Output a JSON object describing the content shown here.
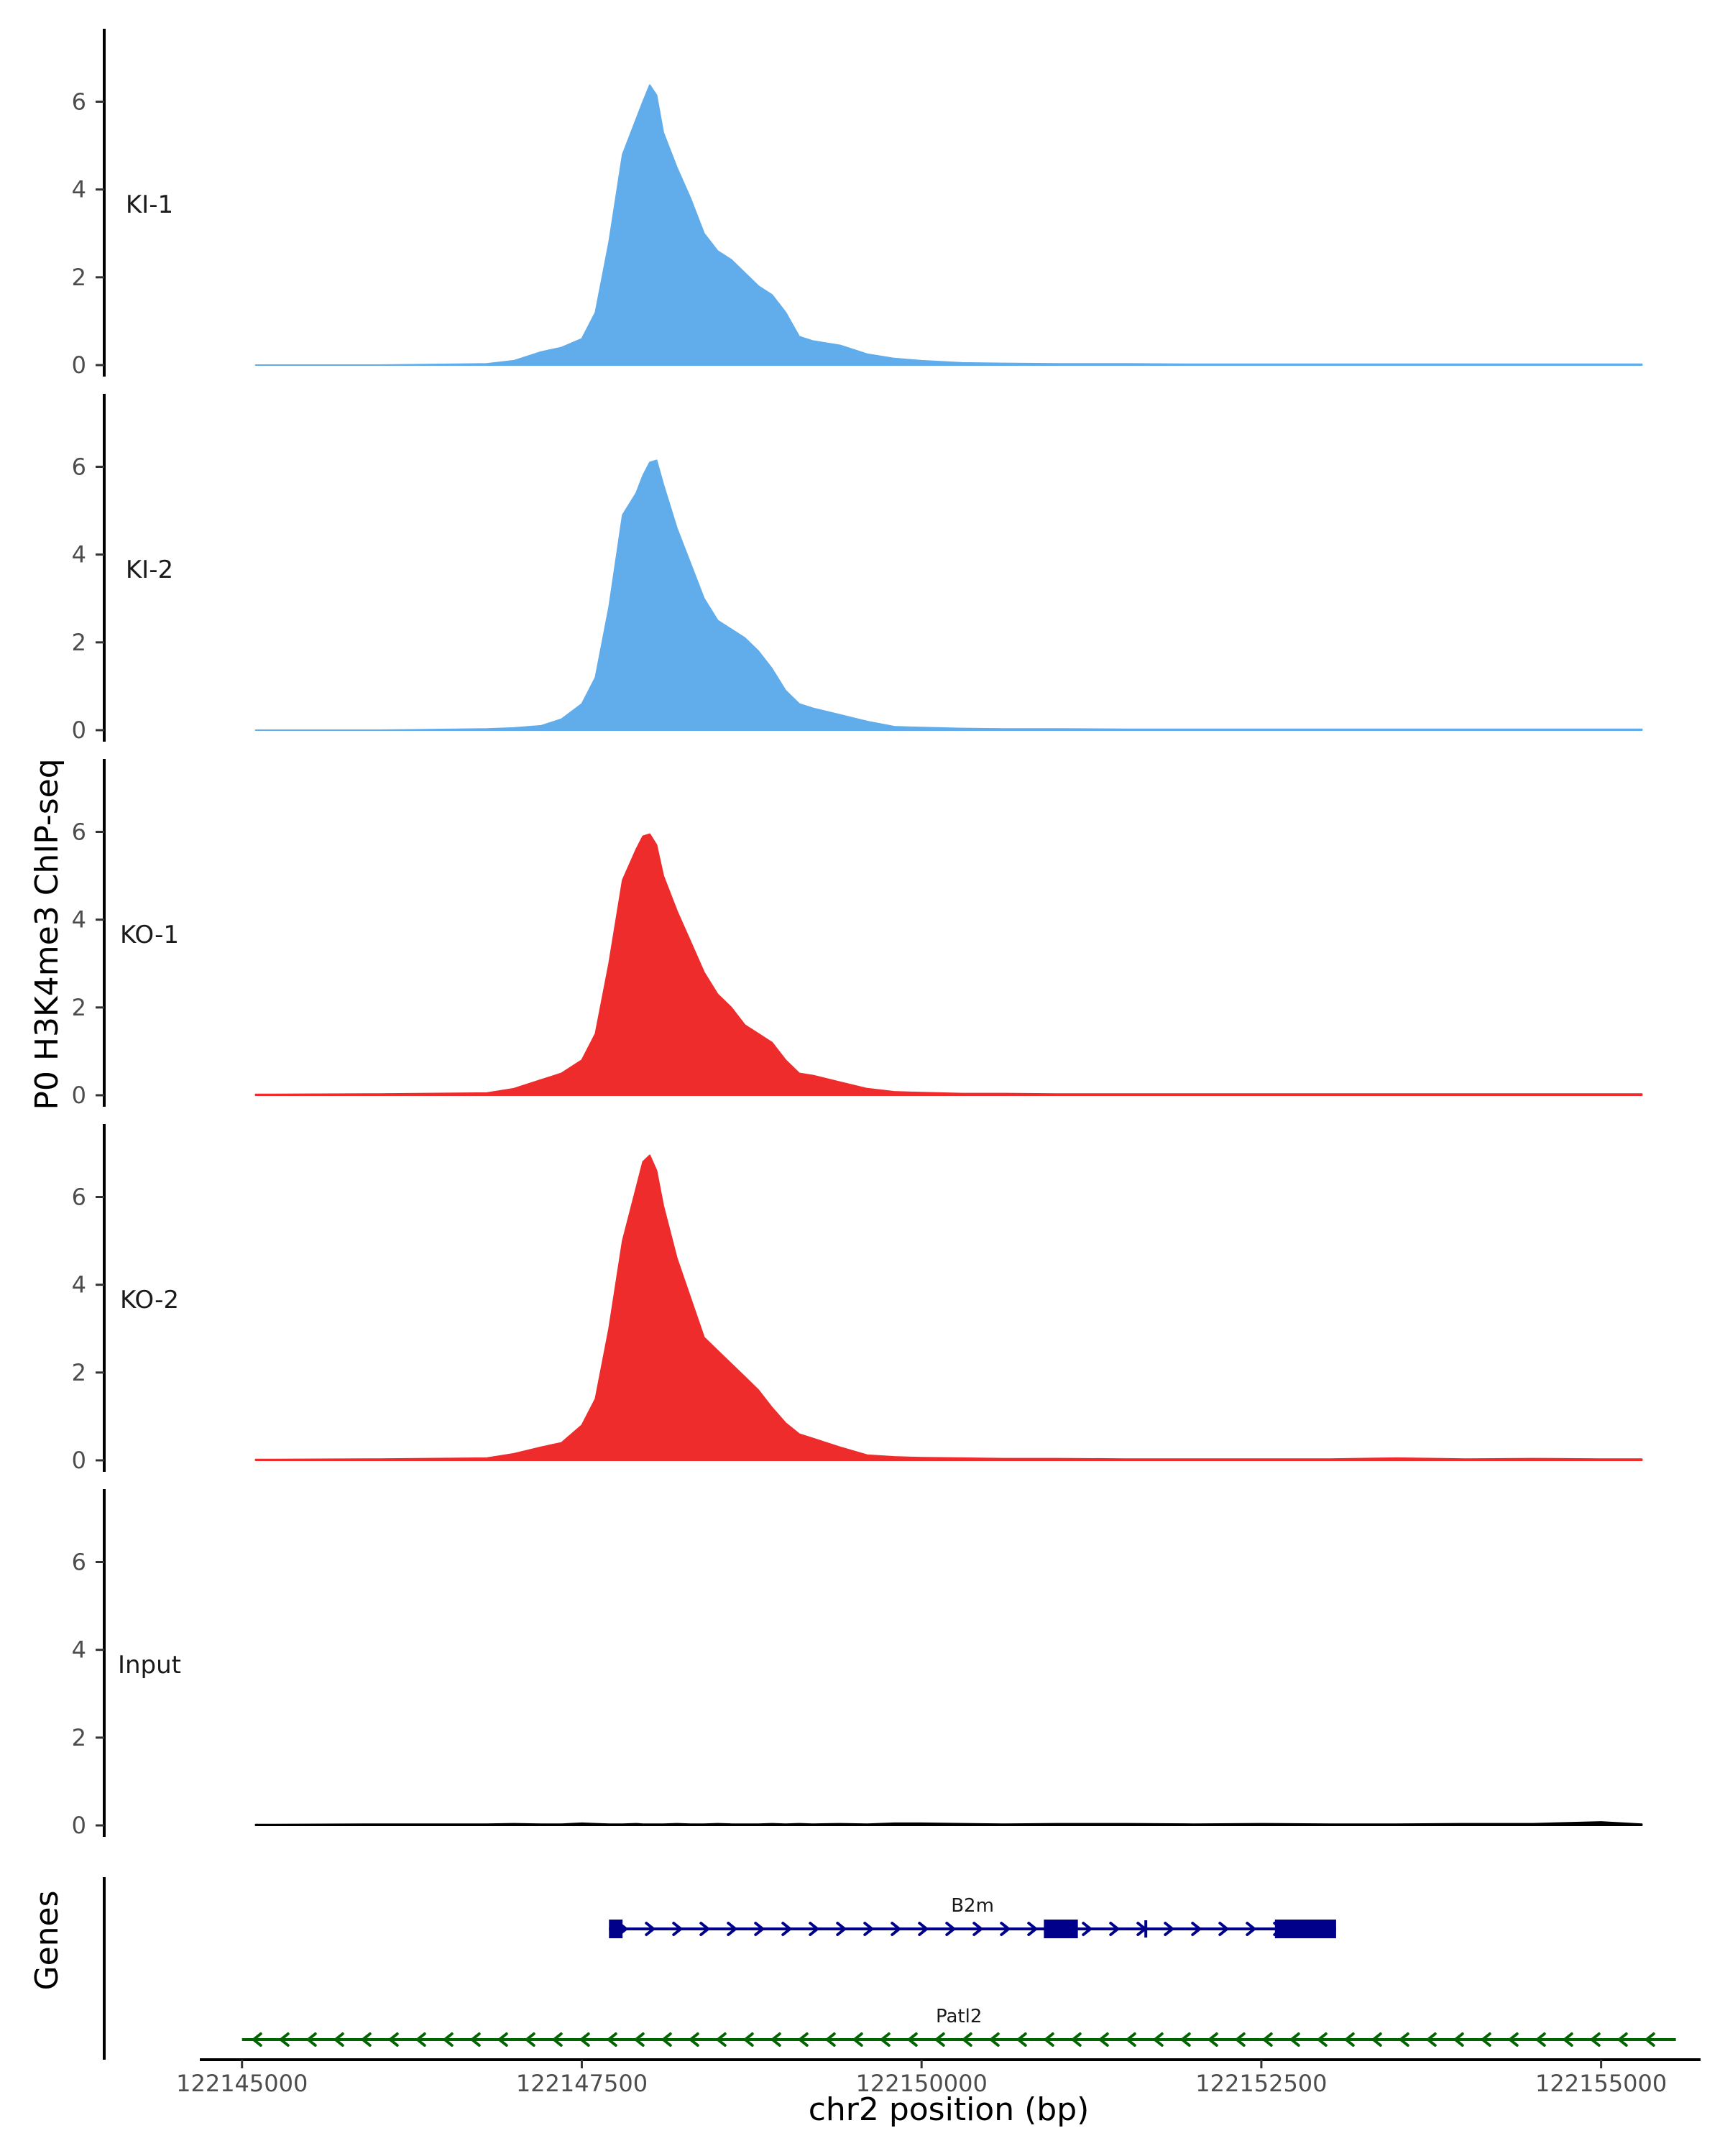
{
  "chart_data": {
    "type": "area",
    "title": "",
    "ylabel": "P0 H3K4me3 ChIP-seq",
    "xlabel": "chr2 position (bp)",
    "genes_label": "Genes",
    "xlim": [
      122144700,
      122155700
    ],
    "ylim": [
      0,
      7.4
    ],
    "y_ticks": [
      "0",
      "2",
      "4",
      "6"
    ],
    "x_ticks": [
      {
        "value": 122145000,
        "label": "122145000"
      },
      {
        "value": 122147500,
        "label": "122147500"
      },
      {
        "value": 122150000,
        "label": "122150000"
      },
      {
        "value": 122152500,
        "label": "122152500"
      },
      {
        "value": 122155000,
        "label": "122155000"
      }
    ],
    "series": [
      {
        "name": "KI-1",
        "color": "#61ADEC",
        "x": [
          122145100,
          122146000,
          122146800,
          122147000,
          122147200,
          122147350,
          122147500,
          122147600,
          122147700,
          122147800,
          122147900,
          122147950,
          122148000,
          122148050,
          122148100,
          122148200,
          122148300,
          122148400,
          122148500,
          122148600,
          122148700,
          122148800,
          122148900,
          122149000,
          122149100,
          122149200,
          122149400,
          122149600,
          122149800,
          122150000,
          122150300,
          122150600,
          122151000,
          122151500,
          122152000,
          122152500,
          122153000,
          122153500,
          122154000,
          122154500,
          122155000,
          122155300
        ],
        "values": [
          0,
          0,
          0.03,
          0.1,
          0.3,
          0.4,
          0.6,
          1.2,
          2.8,
          4.8,
          5.6,
          6.0,
          6.38,
          6.15,
          5.3,
          4.5,
          3.8,
          3.0,
          2.6,
          2.4,
          2.1,
          1.8,
          1.6,
          1.2,
          0.65,
          0.55,
          0.45,
          0.25,
          0.15,
          0.1,
          0.05,
          0.04,
          0.03,
          0.03,
          0.02,
          0.02,
          0.02,
          0.02,
          0.02,
          0.02,
          0.02,
          0.02
        ]
      },
      {
        "name": "KI-2",
        "color": "#61ADEC",
        "x": [
          122145100,
          122146000,
          122146800,
          122147000,
          122147200,
          122147350,
          122147500,
          122147600,
          122147700,
          122147800,
          122147900,
          122147950,
          122148000,
          122148050,
          122148100,
          122148200,
          122148300,
          122148400,
          122148500,
          122148600,
          122148700,
          122148800,
          122148900,
          122149000,
          122149100,
          122149200,
          122149400,
          122149600,
          122149800,
          122150000,
          122150300,
          122150600,
          122151000,
          122151500,
          122152000,
          122152500,
          122153000,
          122153500,
          122154000,
          122154500,
          122155000,
          122155300
        ],
        "values": [
          0,
          0,
          0.03,
          0.05,
          0.1,
          0.25,
          0.6,
          1.2,
          2.8,
          4.9,
          5.4,
          5.8,
          6.1,
          6.15,
          5.6,
          4.6,
          3.8,
          3.0,
          2.5,
          2.3,
          2.1,
          1.8,
          1.4,
          0.9,
          0.6,
          0.5,
          0.35,
          0.2,
          0.08,
          0.06,
          0.04,
          0.03,
          0.03,
          0.02,
          0.02,
          0.02,
          0.02,
          0.02,
          0.02,
          0.02,
          0.02,
          0.02
        ]
      },
      {
        "name": "KO-1",
        "color": "#EE2C2C",
        "x": [
          122145100,
          122146000,
          122146800,
          122147000,
          122147200,
          122147350,
          122147500,
          122147600,
          122147700,
          122147800,
          122147900,
          122147950,
          122148000,
          122148050,
          122148100,
          122148200,
          122148300,
          122148400,
          122148500,
          122148600,
          122148700,
          122148800,
          122148900,
          122149000,
          122149100,
          122149200,
          122149400,
          122149600,
          122149800,
          122150000,
          122150300,
          122150600,
          122151000,
          122151500,
          122152000,
          122152500,
          122153000,
          122153500,
          122154000,
          122154500,
          122155000,
          122155300
        ],
        "values": [
          0.02,
          0.03,
          0.05,
          0.15,
          0.35,
          0.5,
          0.8,
          1.4,
          3.0,
          4.9,
          5.6,
          5.9,
          5.95,
          5.7,
          5.0,
          4.2,
          3.5,
          2.8,
          2.3,
          2.0,
          1.6,
          1.4,
          1.2,
          0.8,
          0.5,
          0.45,
          0.3,
          0.15,
          0.08,
          0.06,
          0.04,
          0.04,
          0.03,
          0.03,
          0.03,
          0.03,
          0.03,
          0.03,
          0.03,
          0.03,
          0.03,
          0.03
        ]
      },
      {
        "name": "KO-2",
        "color": "#EE2C2C",
        "x": [
          122145100,
          122146000,
          122146800,
          122147000,
          122147200,
          122147350,
          122147500,
          122147600,
          122147700,
          122147800,
          122147900,
          122147950,
          122148000,
          122148050,
          122148100,
          122148200,
          122148300,
          122148400,
          122148500,
          122148600,
          122148700,
          122148800,
          122148900,
          122149000,
          122149100,
          122149200,
          122149400,
          122149600,
          122149800,
          122150000,
          122150300,
          122150600,
          122151000,
          122151500,
          122152000,
          122152500,
          122153000,
          122153500,
          122154000,
          122154500,
          122155000,
          122155300
        ],
        "values": [
          0.02,
          0.03,
          0.05,
          0.15,
          0.3,
          0.4,
          0.8,
          1.4,
          3.0,
          5.0,
          6.2,
          6.8,
          6.95,
          6.6,
          5.8,
          4.6,
          3.7,
          2.8,
          2.5,
          2.2,
          1.9,
          1.6,
          1.2,
          0.85,
          0.6,
          0.5,
          0.3,
          0.12,
          0.08,
          0.06,
          0.05,
          0.04,
          0.04,
          0.03,
          0.03,
          0.03,
          0.03,
          0.05,
          0.03,
          0.04,
          0.03,
          0.03
        ]
      },
      {
        "name": "Input",
        "color": "#000000",
        "x": [
          122145100,
          122146000,
          122146800,
          122147000,
          122147200,
          122147350,
          122147500,
          122147600,
          122147700,
          122147800,
          122147900,
          122147950,
          122148000,
          122148050,
          122148100,
          122148200,
          122148300,
          122148400,
          122148500,
          122148600,
          122148700,
          122148800,
          122148900,
          122149000,
          122149100,
          122149200,
          122149400,
          122149600,
          122149800,
          122150000,
          122150300,
          122150600,
          122151000,
          122151500,
          122152000,
          122152500,
          122153000,
          122153500,
          122154000,
          122154500,
          122155000,
          122155300
        ],
        "values": [
          0.02,
          0.03,
          0.03,
          0.04,
          0.03,
          0.03,
          0.05,
          0.04,
          0.03,
          0.03,
          0.04,
          0.03,
          0.03,
          0.03,
          0.03,
          0.04,
          0.03,
          0.03,
          0.04,
          0.03,
          0.03,
          0.03,
          0.04,
          0.03,
          0.04,
          0.03,
          0.04,
          0.03,
          0.05,
          0.05,
          0.04,
          0.03,
          0.04,
          0.04,
          0.03,
          0.04,
          0.03,
          0.03,
          0.04,
          0.04,
          0.08,
          0.03
        ]
      }
    ],
    "genes": [
      {
        "name": "B2m",
        "strand": "+",
        "color": "#00008B",
        "start": 122147700,
        "end": 122153050,
        "exons": [
          [
            122147700,
            122147800
          ],
          [
            122150900,
            122151150
          ],
          [
            122152600,
            122153050
          ]
        ],
        "marker": 122151650
      },
      {
        "name": "Patl2",
        "strand": "-",
        "color": "#006400",
        "start": 122145000,
        "end": 122155550,
        "exons": [],
        "marker": null
      }
    ]
  }
}
